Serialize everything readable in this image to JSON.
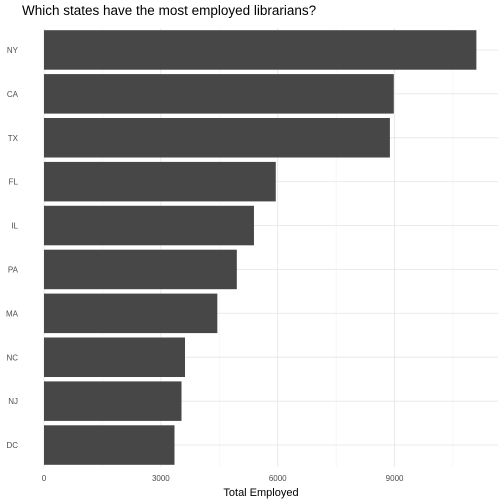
{
  "chart_data": {
    "type": "bar",
    "orientation": "horizontal",
    "title": "Which states have the most employed librarians?",
    "xlabel": "Total Employed",
    "ylabel": "",
    "categories": [
      "NY",
      "CA",
      "TX",
      "FL",
      "IL",
      "PA",
      "MA",
      "NC",
      "NJ",
      "DC"
    ],
    "values": [
      11100,
      8980,
      8880,
      5950,
      5390,
      4950,
      4450,
      3620,
      3530,
      3350
    ],
    "xlim": [
      0,
      11655
    ],
    "x_ticks": [
      0,
      3000,
      6000,
      9000
    ],
    "x_tick_labels": [
      "0",
      "3000",
      "6000",
      "9000"
    ],
    "grid": true,
    "bar_color": "#474747",
    "legend": "none"
  }
}
